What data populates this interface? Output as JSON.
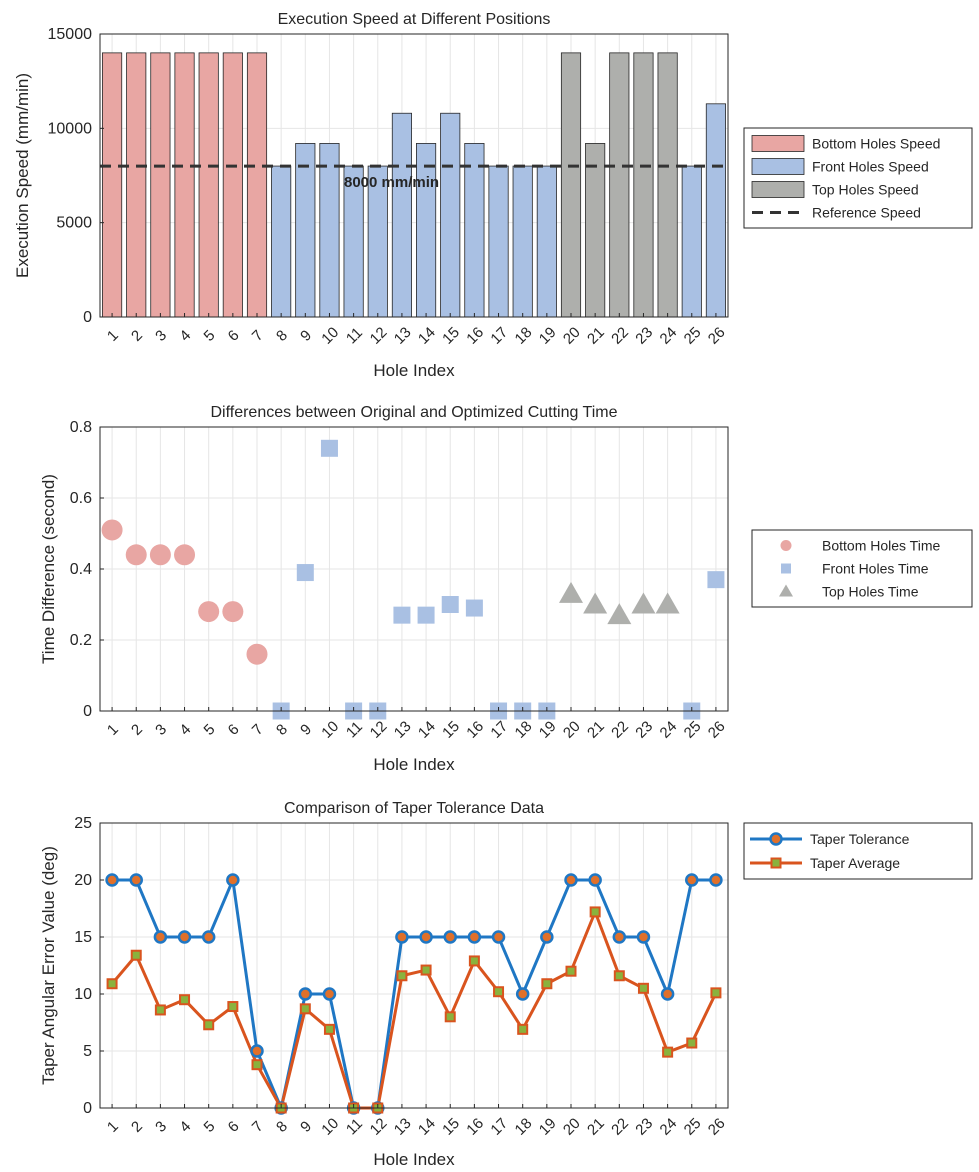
{
  "chart_data": [
    {
      "type": "bar",
      "title": "Execution Speed at Different Positions",
      "xlabel": "Hole Index",
      "ylabel": "Execution Speed (mm/min)",
      "categories": [
        "1",
        "2",
        "3",
        "4",
        "5",
        "6",
        "7",
        "8",
        "9",
        "10",
        "11",
        "12",
        "13",
        "14",
        "15",
        "16",
        "17",
        "18",
        "19",
        "20",
        "21",
        "22",
        "23",
        "24",
        "25",
        "26"
      ],
      "ylim": [
        0,
        15000
      ],
      "yticks": [
        "0",
        "5000",
        "10000",
        "15000"
      ],
      "grid": true,
      "legend_position": "right",
      "series": [
        {
          "name": "Bottom Holes Speed",
          "color": "#e8a6a3",
          "x": [
            1,
            2,
            3,
            4,
            5,
            6,
            7
          ],
          "values": [
            14000,
            14000,
            14000,
            14000,
            14000,
            14000,
            14000
          ]
        },
        {
          "name": "Front Holes Speed",
          "color": "#a9c0e3",
          "x": [
            8,
            9,
            10,
            11,
            12,
            13,
            14,
            15,
            16,
            17,
            18,
            19,
            25,
            26
          ],
          "values": [
            8000,
            9200,
            9200,
            8000,
            8000,
            10800,
            9200,
            10800,
            9200,
            8000,
            8000,
            8000,
            8000,
            11300
          ]
        },
        {
          "name": "Top Holes Speed",
          "color": "#aeafac",
          "x": [
            20,
            21,
            22,
            23,
            24
          ],
          "values": [
            14000,
            9200,
            14000,
            14000,
            14000
          ]
        }
      ],
      "reference": {
        "name": "Reference Speed",
        "value": 8000,
        "label": "8000 mm/min"
      }
    },
    {
      "type": "scatter",
      "title": "Differences between Original and Optimized Cutting Time",
      "xlabel": "Hole Index",
      "ylabel": "Time Difference (second)",
      "categories": [
        "1",
        "2",
        "3",
        "4",
        "5",
        "6",
        "7",
        "8",
        "9",
        "10",
        "11",
        "12",
        "13",
        "14",
        "15",
        "16",
        "17",
        "18",
        "19",
        "20",
        "21",
        "22",
        "23",
        "24",
        "25",
        "26"
      ],
      "ylim": [
        0,
        0.8
      ],
      "yticks": [
        "0",
        "0.2",
        "0.4",
        "0.6",
        "0.8"
      ],
      "grid": true,
      "legend_position": "right",
      "series": [
        {
          "name": "Bottom Holes Time",
          "marker": "circle",
          "color": "#e8a6a3",
          "x": [
            1,
            2,
            3,
            4,
            5,
            6,
            7
          ],
          "y": [
            0.51,
            0.44,
            0.44,
            0.44,
            0.28,
            0.28,
            0.16
          ]
        },
        {
          "name": "Front Holes Time",
          "marker": "square",
          "color": "#a9c0e3",
          "x": [
            8,
            9,
            10,
            11,
            12,
            13,
            14,
            15,
            16,
            17,
            18,
            19,
            25,
            26
          ],
          "y": [
            0,
            0.39,
            0.74,
            0,
            0,
            0.27,
            0.27,
            0.3,
            0.29,
            0,
            0,
            0,
            0,
            0.37
          ]
        },
        {
          "name": "Top Holes Time",
          "marker": "triangle",
          "color": "#aeafac",
          "x": [
            20,
            21,
            22,
            23,
            24
          ],
          "y": [
            0.33,
            0.3,
            0.27,
            0.3,
            0.3
          ]
        }
      ]
    },
    {
      "type": "line",
      "title": "Comparison of Taper Tolerance Data",
      "xlabel": "Hole Index",
      "ylabel": "Taper Angular Error Value (deg)",
      "categories": [
        "1",
        "2",
        "3",
        "4",
        "5",
        "6",
        "7",
        "8",
        "9",
        "10",
        "11",
        "12",
        "13",
        "14",
        "15",
        "16",
        "17",
        "18",
        "19",
        "20",
        "21",
        "22",
        "23",
        "24",
        "25",
        "26"
      ],
      "ylim": [
        0,
        25
      ],
      "yticks": [
        "0",
        "5",
        "10",
        "15",
        "20",
        "25"
      ],
      "grid": true,
      "legend_position": "right",
      "series": [
        {
          "name": "Taper Tolerance",
          "color": "#1f77c4",
          "marker": "circle",
          "marker_fill": "#e0702a",
          "values": [
            20,
            20,
            15,
            15,
            15,
            20,
            5,
            0,
            10,
            10,
            0,
            0,
            15,
            15,
            15,
            15,
            15,
            10,
            15,
            20,
            20,
            15,
            15,
            10,
            20,
            20
          ]
        },
        {
          "name": "Taper Average",
          "color": "#d9541e",
          "marker": "square",
          "marker_fill": "#8ab23d",
          "values": [
            10.9,
            13.4,
            8.6,
            9.5,
            7.3,
            8.9,
            3.8,
            0,
            8.7,
            6.9,
            0,
            0,
            11.6,
            12.1,
            8.0,
            12.9,
            10.2,
            6.9,
            10.9,
            12.0,
            17.2,
            11.6,
            10.5,
            4.9,
            5.7,
            10.1
          ]
        }
      ]
    }
  ]
}
